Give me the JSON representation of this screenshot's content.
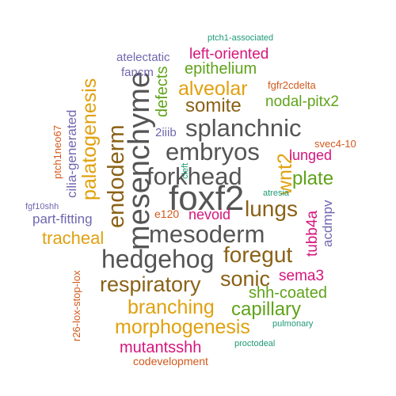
{
  "colors": {
    "dark_gray": "#555555",
    "brown": "#8a6116",
    "gold": "#e0a10f",
    "green": "#5fa31a",
    "magenta": "#d6157c",
    "orange": "#d2581b",
    "purple": "#6f67ae",
    "teal": "#1f9a76"
  },
  "words": [
    {
      "text": "mesenchyme"
    },
    {
      "text": "foxf2"
    },
    {
      "text": "hedgehog"
    },
    {
      "text": "mesoderm"
    },
    {
      "text": "forkhead"
    },
    {
      "text": "embryos"
    },
    {
      "text": "splanchnic"
    },
    {
      "text": "endoderm"
    },
    {
      "text": "lungs"
    },
    {
      "text": "foregut"
    },
    {
      "text": "respiratory"
    },
    {
      "text": "sonic"
    },
    {
      "text": "somite"
    },
    {
      "text": "alveolar"
    },
    {
      "text": "palatogenesis"
    },
    {
      "text": "branching"
    },
    {
      "text": "morphogenesis"
    },
    {
      "text": "capillary"
    },
    {
      "text": "wnt2"
    },
    {
      "text": "plate"
    },
    {
      "text": "tracheal"
    },
    {
      "text": "epithelium"
    },
    {
      "text": "nodal-pitx2"
    },
    {
      "text": "shh-coated"
    },
    {
      "text": "mutantsshh"
    },
    {
      "text": "defects"
    },
    {
      "text": "left-oriented"
    },
    {
      "text": "sema3"
    },
    {
      "text": "tubb4a"
    },
    {
      "text": "nevoid"
    },
    {
      "text": "lunged"
    },
    {
      "text": "cilia-generated"
    },
    {
      "text": "part-fitting"
    },
    {
      "text": "acdmpv"
    },
    {
      "text": "codevelopment"
    },
    {
      "text": "atelectatic"
    },
    {
      "text": "fancm"
    },
    {
      "text": "2iiib"
    },
    {
      "text": "e120"
    },
    {
      "text": "ptch1neo67"
    },
    {
      "text": "r26-lox-stop-lox"
    },
    {
      "text": "fgfr2cdelta"
    },
    {
      "text": "svec4-10"
    },
    {
      "text": "fgf10shh"
    },
    {
      "text": "ptch1-associated"
    },
    {
      "text": "atresia"
    },
    {
      "text": "pulmonary"
    },
    {
      "text": "proctodeal"
    },
    {
      "text": "cleft"
    }
  ]
}
